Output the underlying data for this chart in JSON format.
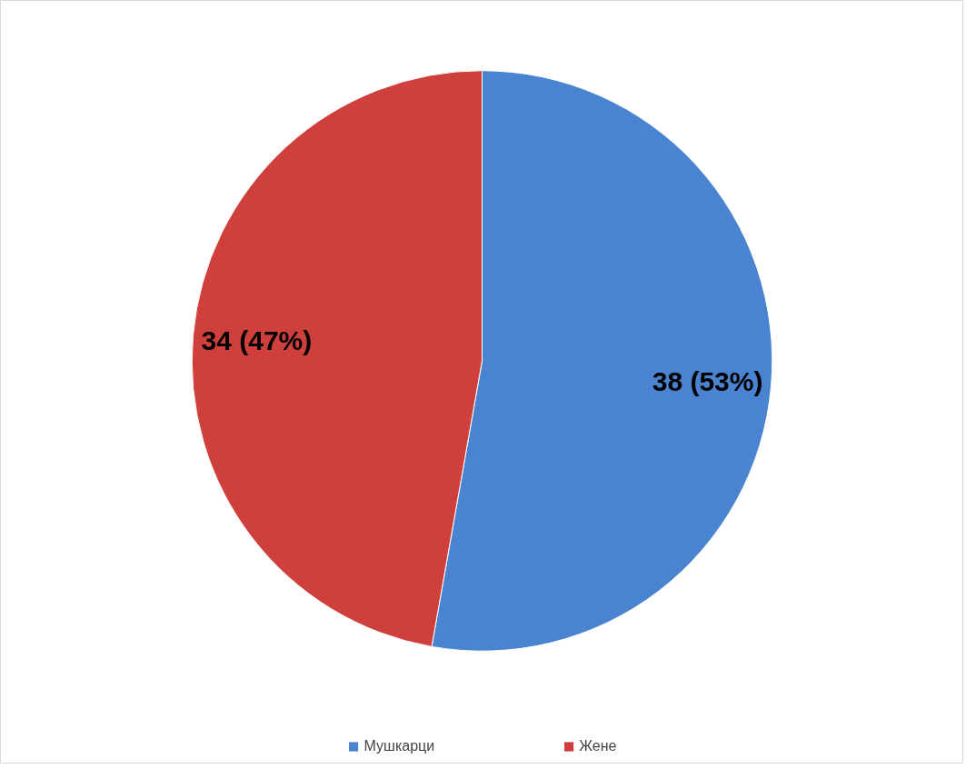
{
  "chart_data": {
    "type": "pie",
    "categories": [
      "Мушкарци",
      "Жене"
    ],
    "values": [
      38,
      34
    ],
    "colors": [
      "#4a84d0",
      "#cf403c"
    ],
    "value_labels": [
      "38 (53%)",
      "34 (47%)"
    ],
    "legend": "bottom"
  }
}
